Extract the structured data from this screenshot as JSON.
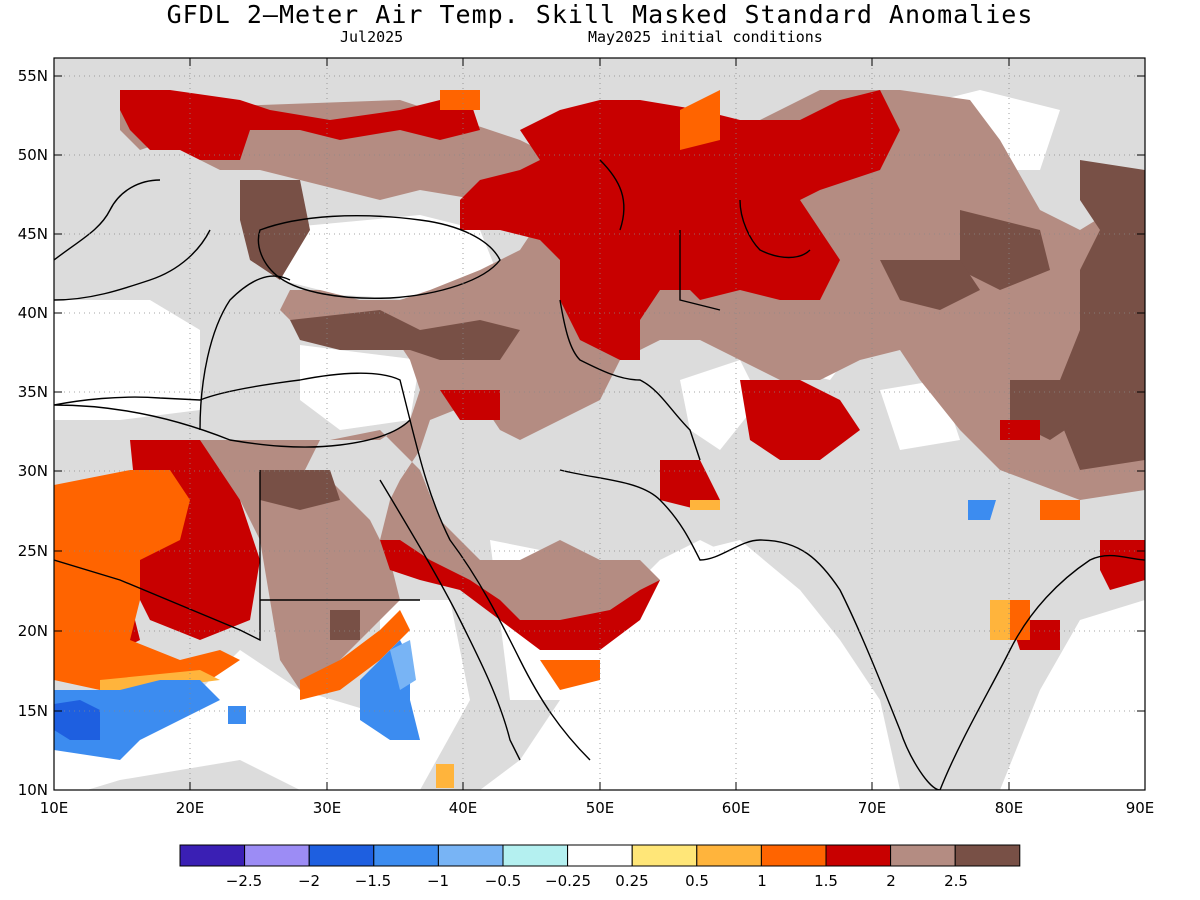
{
  "title": "GFDL 2—Meter Air Temp. Skill Masked Standard Anomalies",
  "valid_month": "Jul2025",
  "initial_conditions": "May2025 initial conditions",
  "map": {
    "lon_range": [
      10,
      90
    ],
    "lat_range": [
      10,
      56.5
    ],
    "lat_ticks": [
      "55N",
      "50N",
      "45N",
      "40N",
      "35N",
      "30N",
      "25N",
      "20N",
      "15N",
      "10N"
    ],
    "lon_ticks": [
      "10E",
      "20E",
      "30E",
      "40E",
      "50E",
      "60E",
      "70E",
      "80E",
      "90E"
    ],
    "ocean_color": "#ffffff",
    "masked_land_color": "#dcdcdc"
  },
  "colorbar": {
    "colors": [
      "#3a1fb4",
      "#9c8cf5",
      "#1e5fe0",
      "#3c8cf0",
      "#78b4f5",
      "#b4f0f0",
      "#ffffff",
      "#ffe678",
      "#ffb43c",
      "#ff6400",
      "#c80000",
      "#b48c82",
      "#785046"
    ],
    "labels": [
      "−2.5",
      "−2",
      "−1.5",
      "−1",
      "−0.5",
      "−0.25",
      "0.25",
      "0.5",
      "1",
      "1.5",
      "2",
      "2.5"
    ]
  }
}
